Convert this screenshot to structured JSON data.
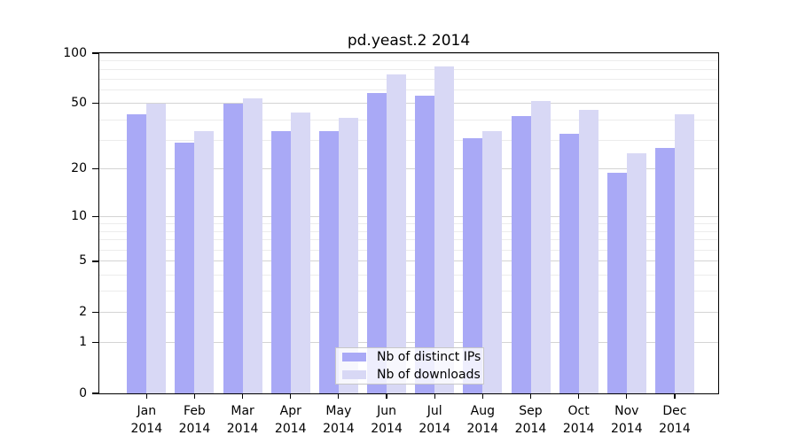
{
  "title": "pd.yeast.2 2014",
  "legend": {
    "items": [
      {
        "label": "Nb of distinct IPs",
        "color": "#a9a9f6"
      },
      {
        "label": "Nb of downloads",
        "color": "#d8d8f5"
      }
    ]
  },
  "colors": {
    "distinct_ips": "#a9a9f6",
    "downloads": "#d8d8f5",
    "major_grid": "#d4d4d4",
    "minor_grid": "#ececec",
    "axis": "#000000"
  },
  "chart_data": {
    "type": "bar",
    "title": "pd.yeast.2 2014",
    "categories": [
      "Jan",
      "Feb",
      "Mar",
      "Apr",
      "May",
      "Jun",
      "Jul",
      "Aug",
      "Sep",
      "Oct",
      "Nov",
      "Dec"
    ],
    "year": "2014",
    "series": [
      {
        "name": "Nb of distinct IPs",
        "color": "#a9a9f6",
        "values": [
          43,
          29,
          50,
          34,
          34,
          58,
          56,
          31,
          42,
          33,
          19,
          27
        ]
      },
      {
        "name": "Nb of downloads",
        "color": "#d8d8f5",
        "values": [
          50,
          34,
          54,
          44,
          41,
          75,
          83,
          34,
          52,
          46,
          25,
          43
        ]
      }
    ],
    "xlabel": "",
    "ylabel": "",
    "y_scale": "log10(value+1)",
    "ylim": [
      0,
      100
    ],
    "y_ticks": [
      100,
      50,
      20,
      10,
      5,
      2,
      1,
      0
    ],
    "major_gridlines": [
      1,
      2,
      5,
      10,
      20,
      50,
      100
    ],
    "minor_gridlines": [
      3,
      4,
      6,
      7,
      8,
      9,
      30,
      40,
      60,
      70,
      80,
      90
    ],
    "grid": true,
    "legend_position": "bottom-center"
  }
}
